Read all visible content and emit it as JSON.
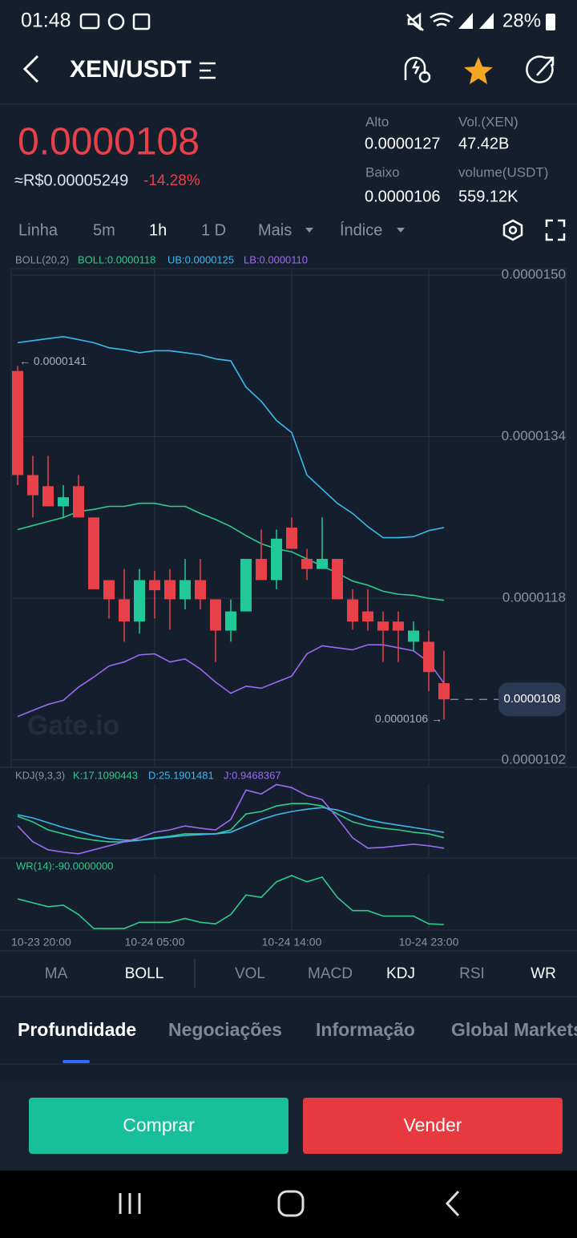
{
  "status_bar": {
    "time": "01:48",
    "battery": "28%"
  },
  "header": {
    "pair": "XEN/USDT"
  },
  "ticker": {
    "price": "0.0000108",
    "fiat_price": "≈R$0.00005249",
    "change": "-14.28%",
    "stats": [
      {
        "label": "Alto",
        "value": "0.0000127"
      },
      {
        "label": "Vol.(XEN)",
        "value": "47.42B"
      },
      {
        "label": "Baixo",
        "value": "0.0000106"
      },
      {
        "label": "volume(USDT)",
        "value": "559.12K"
      }
    ]
  },
  "interval_tabs": [
    "Linha",
    "5m",
    "1h",
    "1 D",
    "Mais",
    "Índice"
  ],
  "chart_data": [
    {
      "type": "candlestick",
      "indicator": "BOLL(20,2)",
      "watermark": "Gate.io",
      "categories": [
        "10-23 20:00",
        null,
        null,
        null,
        null,
        null,
        null,
        null,
        null,
        "10-24 05:00",
        null,
        null,
        null,
        null,
        null,
        null,
        null,
        null,
        "10-24 14:00",
        null,
        null,
        null,
        null,
        null,
        null,
        null,
        null,
        "10-24 23:00",
        null
      ],
      "open": [
        1.405e-05,
        1.302e-05,
        1.291e-05,
        1.271e-05,
        1.291e-05,
        1.26e-05,
        1.198e-05,
        1.179e-05,
        1.157e-05,
        1.198e-05,
        1.198e-05,
        1.179e-05,
        1.198e-05,
        1.179e-05,
        1.148e-05,
        1.167e-05,
        1.219e-05,
        1.198e-05,
        1.25e-05,
        1.219e-05,
        1.209e-05,
        1.219e-05,
        1.179e-05,
        1.167e-05,
        1.157e-05,
        1.157e-05,
        1.137e-05,
        1.137e-05,
        1.096e-05
      ],
      "high": [
        1.41e-05,
        1.321e-05,
        1.321e-05,
        1.292e-05,
        1.302e-05,
        1.26e-05,
        1.198e-05,
        1.209e-05,
        1.209e-05,
        1.207e-05,
        1.209e-05,
        1.219e-05,
        1.219e-05,
        1.179e-05,
        1.179e-05,
        1.219e-05,
        1.248e-05,
        1.248e-05,
        1.26e-05,
        1.229e-05,
        1.26e-05,
        1.219e-05,
        1.189e-05,
        1.189e-05,
        1.167e-05,
        1.167e-05,
        1.157e-05,
        1.148e-05,
        1.128e-05
      ],
      "low": [
        1.292e-05,
        1.26e-05,
        1.271e-05,
        1.26e-05,
        1.26e-05,
        1.189e-05,
        1.16e-05,
        1.137e-05,
        1.145e-05,
        1.16e-05,
        1.149e-05,
        1.169e-05,
        1.169e-05,
        1.117e-05,
        1.137e-05,
        1.167e-05,
        1.198e-05,
        1.189e-05,
        1.229e-05,
        1.198e-05,
        1.209e-05,
        1.179e-05,
        1.149e-05,
        1.148e-05,
        1.117e-05,
        1.117e-05,
        1.128e-05,
        1.088e-05,
        1.06e-05
      ],
      "close": [
        1.302e-05,
        1.282e-05,
        1.271e-05,
        1.28e-05,
        1.26e-05,
        1.189e-05,
        1.179e-05,
        1.157e-05,
        1.198e-05,
        1.188e-05,
        1.179e-05,
        1.198e-05,
        1.179e-05,
        1.148e-05,
        1.167e-05,
        1.219e-05,
        1.198e-05,
        1.239e-05,
        1.229e-05,
        1.209e-05,
        1.219e-05,
        1.179e-05,
        1.157e-05,
        1.157e-05,
        1.148e-05,
        1.148e-05,
        1.148e-05,
        1.107e-05,
        1.08e-05
      ],
      "up_color": "#20c997",
      "down_color": "#e8414a",
      "series": [
        {
          "name": "BOLL:0.0000118",
          "color": "#2ecc8a",
          "values": [
            1.248e-05,
            1.252e-05,
            1.256e-05,
            1.26e-05,
            1.266e-05,
            1.268e-05,
            1.271e-05,
            1.271e-05,
            1.274e-05,
            1.274e-05,
            1.271e-05,
            1.271e-05,
            1.264e-05,
            1.258e-05,
            1.251e-05,
            1.242e-05,
            1.234e-05,
            1.229e-05,
            1.226e-05,
            1.219e-05,
            1.212e-05,
            1.205e-05,
            1.197e-05,
            1.193e-05,
            1.187e-05,
            1.184e-05,
            1.183e-05,
            1.18e-05,
            1.178e-05
          ]
        },
        {
          "name": "UB:0.0000125",
          "color": "#3bb9ec",
          "values": [
            1.433e-05,
            1.435e-05,
            1.437e-05,
            1.439e-05,
            1.436e-05,
            1.433e-05,
            1.428e-05,
            1.426e-05,
            1.423e-05,
            1.425e-05,
            1.425e-05,
            1.423e-05,
            1.421e-05,
            1.417e-05,
            1.415e-05,
            1.389e-05,
            1.375e-05,
            1.356e-05,
            1.344e-05,
            1.302e-05,
            1.288e-05,
            1.274e-05,
            1.264e-05,
            1.251e-05,
            1.24e-05,
            1.24e-05,
            1.241e-05,
            1.247e-05,
            1.25e-05
          ]
        },
        {
          "name": "LB:0.0000110",
          "color": "#9b6bf2",
          "values": [
            1.063e-05,
            1.069e-05,
            1.075e-05,
            1.079e-05,
            1.092e-05,
            1.102e-05,
            1.113e-05,
            1.117e-05,
            1.124e-05,
            1.125e-05,
            1.117e-05,
            1.12e-05,
            1.11e-05,
            1.097e-05,
            1.086e-05,
            1.093e-05,
            1.091e-05,
            1.097e-05,
            1.103e-05,
            1.125e-05,
            1.133e-05,
            1.131e-05,
            1.129e-05,
            1.134e-05,
            1.134e-05,
            1.131e-05,
            1.128e-05,
            1.117e-05,
            1.096e-05
          ]
        }
      ],
      "ylim": [
        1.0127e-05,
        1.5063e-05
      ],
      "yticks": [
        {
          "value": 1.5e-05,
          "label": "0.0000150"
        },
        {
          "value": 1.34e-05,
          "label": "0.0000134"
        },
        {
          "value": 1.18e-05,
          "label": "0.0000118"
        },
        {
          "value": 1.02e-05,
          "label": "0.0000102"
        }
      ],
      "max_label": {
        "value": 1.41e-05,
        "label": "← 0.0000141"
      },
      "min_label": {
        "value": 1.06e-05,
        "label": "0.0000106 →"
      },
      "last_price": {
        "value": 1.08e-05,
        "label": "0.0000108"
      },
      "grid": true
    },
    {
      "type": "line",
      "indicator": "KDJ(9,3,3)",
      "series": [
        {
          "name": "K:17.1090443",
          "color": "#2ecc8a",
          "values": [
            49.8,
            41.2,
            29.0,
            22.9,
            16.8,
            13.2,
            10.7,
            10.7,
            13.2,
            16.8,
            19.3,
            22.9,
            22.9,
            22.9,
            29.0,
            53.4,
            57.1,
            65.6,
            69.3,
            69.3,
            65.6,
            53.4,
            41.2,
            35.1,
            31.5,
            29.0,
            25.4,
            22.9,
            17.1090443
          ]
        },
        {
          "name": "D:25.1901481",
          "color": "#3bb9ec",
          "values": [
            52.2,
            47.3,
            40.0,
            32.7,
            26.6,
            20.5,
            15.6,
            13.2,
            13.2,
            15.6,
            18.0,
            20.5,
            21.7,
            22.9,
            25.4,
            35.1,
            44.9,
            52.2,
            57.1,
            60.7,
            63.2,
            59.5,
            52.2,
            44.9,
            40.0,
            36.3,
            32.7,
            29.0,
            25.1901481
          ]
        },
        {
          "name": "J:0.9468367",
          "color": "#9b6bf2",
          "values": [
            35.1,
            10.7,
            -1.5,
            -5.1,
            -7.6,
            -1.5,
            4.6,
            10.7,
            16.8,
            25.4,
            29.0,
            35.1,
            31.5,
            29.0,
            44.9,
            90.0,
            83.9,
            98.5,
            93.7,
            81.5,
            75.4,
            47.3,
            16.8,
            1.0,
            2.2,
            4.6,
            7.1,
            4.6,
            0.9468367
          ]
        }
      ],
      "ylim": [
        -14,
        99
      ]
    },
    {
      "type": "line",
      "series": [
        {
          "name": "WR(14):-90.0000000",
          "color": "#2ecc8a",
          "values": [
            -44.4,
            -51.4,
            -58.3,
            -55.6,
            -72.2,
            -97.2,
            -97.2,
            -97.2,
            -86.1,
            -86.1,
            -86.1,
            -79.2,
            -86.1,
            -88.9,
            -72.2,
            -37.5,
            -41.7,
            -13.9,
            -2.8,
            -13.9,
            -5.6,
            -41.7,
            -65.3,
            -65.3,
            -75.0,
            -75.0,
            -75.0,
            -88.9,
            -90.0
          ]
        }
      ],
      "ylim": [
        -100,
        0
      ]
    }
  ],
  "indicator_tabs": [
    "MA",
    "BOLL",
    "VOL",
    "MACD",
    "KDJ",
    "RSI",
    "WR"
  ],
  "section_tabs": [
    "Profundidade",
    "Negociações",
    "Informação",
    "Global Markets"
  ],
  "buttons": {
    "buy": "Comprar",
    "sell": "Vender"
  }
}
